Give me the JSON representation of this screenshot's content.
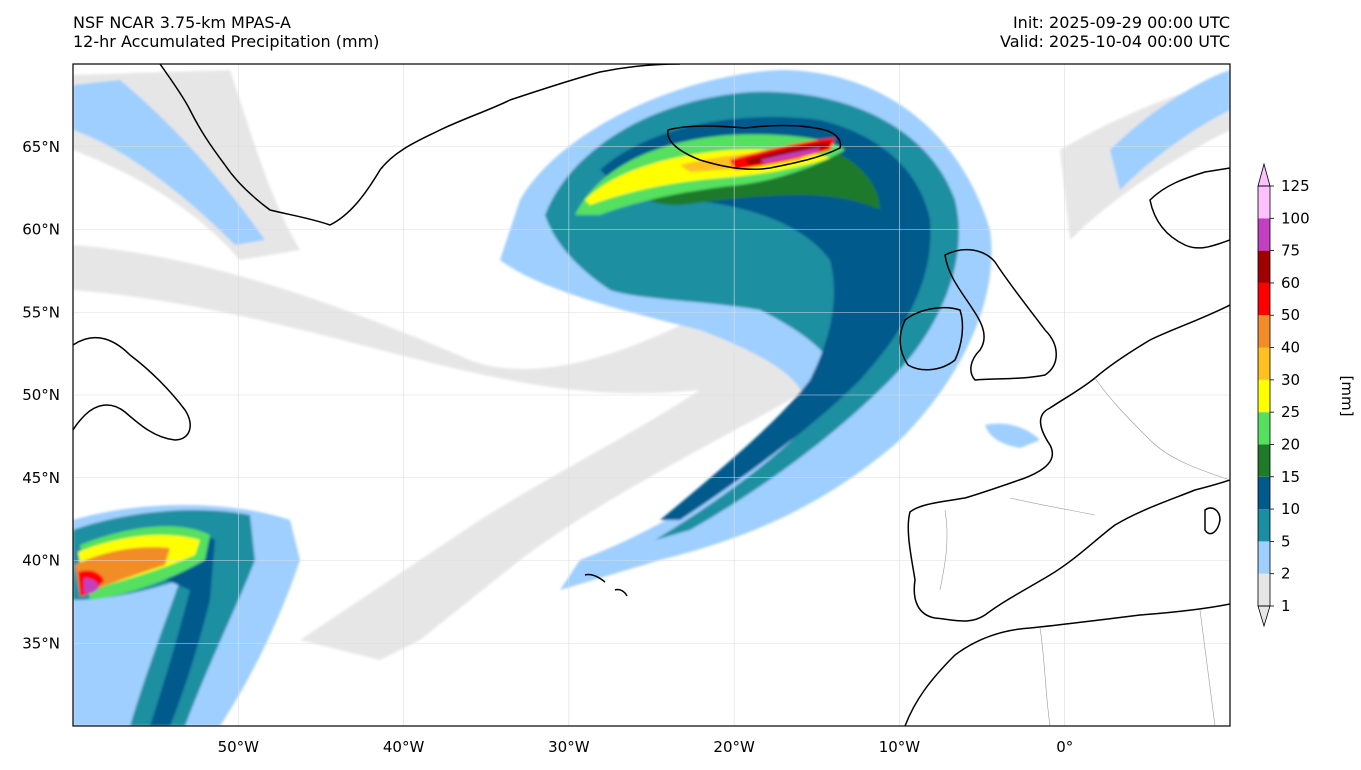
{
  "header": {
    "model": "NSF NCAR 3.75-km MPAS-A",
    "field": "12-hr Accumulated Precipitation (mm)",
    "init": "Init: 2025-09-29 00:00 UTC",
    "valid": "Valid: 2025-10-04 00:00 UTC"
  },
  "map": {
    "projection": "PlateCarree",
    "lon_range": [
      -60,
      10
    ],
    "lat_range": [
      30,
      70
    ],
    "gridlines": true,
    "lat_labels": [
      "65°N",
      "60°N",
      "55°N",
      "50°N",
      "45°N",
      "40°N",
      "35°N"
    ],
    "lat_values": [
      65,
      60,
      55,
      50,
      45,
      40,
      35
    ],
    "lon_labels": [
      "50°W",
      "40°W",
      "30°W",
      "20°W",
      "10°W",
      "0°"
    ],
    "lon_values": [
      -50,
      -40,
      -30,
      -20,
      -10,
      0
    ],
    "coastline_color": "#000000",
    "border_color": "#9a9a9a"
  },
  "colorbar": {
    "label": "[mm]",
    "levels": [
      "1",
      "2",
      "5",
      "10",
      "15",
      "20",
      "25",
      "30",
      "40",
      "50",
      "60",
      "75",
      "100",
      "125"
    ],
    "colors": [
      "#e6e6e6",
      "#9ecfff",
      "#1b8fa1",
      "#005a8c",
      "#1f7a2a",
      "#55e060",
      "#ffff00",
      "#ffc020",
      "#f28c28",
      "#ff0000",
      "#a00000",
      "#c040c0",
      "#ffc0ff"
    ],
    "extend": "both"
  }
}
